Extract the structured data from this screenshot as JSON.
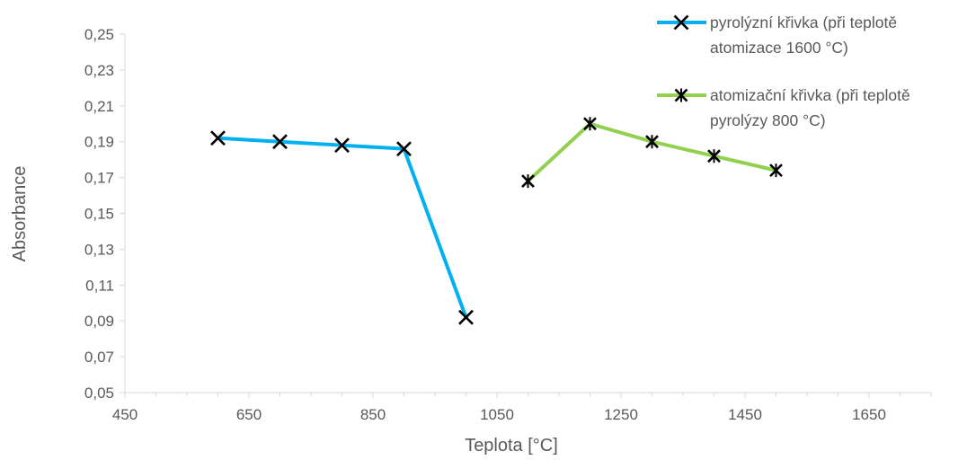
{
  "chart_data": {
    "type": "line",
    "xlabel": "Teplota [°C]",
    "ylabel": "Absorbance",
    "xlim": [
      450,
      1750
    ],
    "ylim": [
      0.05,
      0.25
    ],
    "x_ticks": [
      "450",
      "650",
      "850",
      "1050",
      "1250",
      "1450",
      "1650"
    ],
    "y_ticks": [
      "0,05",
      "0,07",
      "0,09",
      "0,11",
      "0,13",
      "0,15",
      "0,17",
      "0,19",
      "0,21",
      "0,23",
      "0,25"
    ],
    "grid": false,
    "legend_position": "top-right",
    "series": [
      {
        "name_lines": [
          "pyrolýzní křivka (při teplotě",
          "atomizace 1600 °C)"
        ],
        "color": "#00b0f0",
        "marker": "x",
        "points": [
          {
            "x": 600,
            "y": 0.192
          },
          {
            "x": 700,
            "y": 0.19
          },
          {
            "x": 800,
            "y": 0.188
          },
          {
            "x": 900,
            "y": 0.186
          },
          {
            "x": 1000,
            "y": 0.092
          }
        ]
      },
      {
        "name_lines": [
          "atomizační křivka (při teplotě",
          "pyrolýzy 800 °C)"
        ],
        "color": "#92d050",
        "marker": "star",
        "points": [
          {
            "x": 1100,
            "y": 0.168
          },
          {
            "x": 1200,
            "y": 0.2
          },
          {
            "x": 1300,
            "y": 0.19
          },
          {
            "x": 1400,
            "y": 0.182
          },
          {
            "x": 1500,
            "y": 0.174
          }
        ]
      }
    ]
  }
}
